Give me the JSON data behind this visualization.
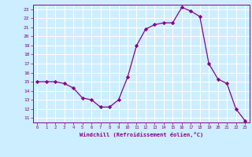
{
  "x": [
    0,
    1,
    2,
    3,
    4,
    5,
    6,
    7,
    8,
    9,
    10,
    11,
    12,
    13,
    14,
    15,
    16,
    17,
    18,
    19,
    20,
    21,
    22,
    23
  ],
  "y": [
    15,
    15,
    15,
    14.8,
    14.3,
    13.2,
    13.0,
    12.2,
    12.2,
    13.0,
    15.5,
    19.0,
    20.8,
    21.3,
    21.5,
    21.5,
    23.2,
    22.8,
    22.2,
    17.0,
    15.3,
    14.8,
    12.0,
    10.7
  ],
  "line_color": "#880088",
  "marker": "D",
  "marker_size": 2.2,
  "bg_color": "#cceeff",
  "grid_color": "#ffffff",
  "xlabel": "Windchill (Refroidissement éolien,°C)",
  "xlim": [
    -0.5,
    23.5
  ],
  "ylim": [
    10.5,
    23.5
  ],
  "yticks": [
    11,
    12,
    13,
    14,
    15,
    16,
    17,
    18,
    19,
    20,
    21,
    22,
    23
  ],
  "xticks": [
    0,
    1,
    2,
    3,
    4,
    5,
    6,
    7,
    8,
    9,
    10,
    11,
    12,
    13,
    14,
    15,
    16,
    17,
    18,
    19,
    20,
    21,
    22,
    23
  ]
}
